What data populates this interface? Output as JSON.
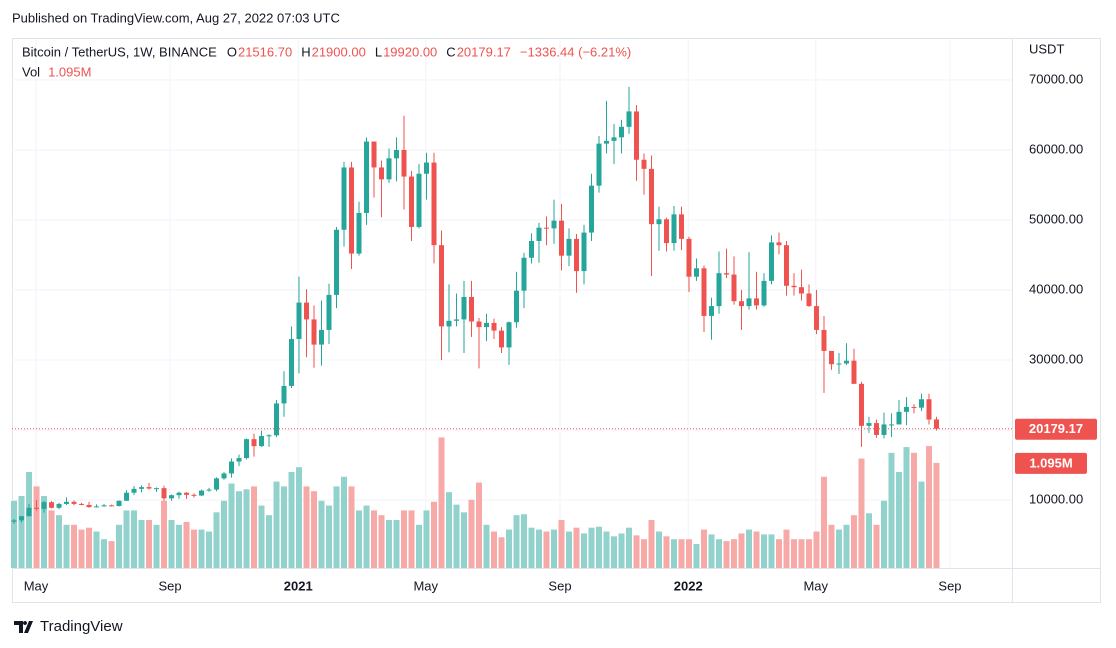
{
  "header": "Published on TradingView.com, Aug 27, 2022 07:03 UTC",
  "footer": "TradingView",
  "chart_data": {
    "type": "candlestick",
    "title": "Bitcoin / TetherUS, 1W, BINANCE",
    "legend": [
      {
        "key": "O",
        "value": "21516.70"
      },
      {
        "key": "H",
        "value": "21900.00"
      },
      {
        "key": "L",
        "value": "19920.00"
      },
      {
        "key": "C",
        "value": "20179.17"
      }
    ],
    "change": "−1336.44 (−6.21%)",
    "volume_title": "Vol",
    "volume_label": "1.095M",
    "price_label": "20179.17",
    "price_line": 20179.17,
    "y_unit": "USDT",
    "up_color": "#26a69a",
    "down_color": "#ef5350",
    "volume_up_color": "#92d2cc",
    "volume_down_color": "#f7a9a7",
    "grid": true,
    "ylim": [
      300,
      75700
    ],
    "yticks": [
      {
        "value": 10000,
        "label": "10000.00"
      },
      {
        "value": 20000,
        "label": "20000.00"
      },
      {
        "value": 30000,
        "label": "30000.00"
      },
      {
        "value": 40000,
        "label": "40000.00"
      },
      {
        "value": 50000,
        "label": "50000.00"
      },
      {
        "value": 60000,
        "label": "60000.00"
      },
      {
        "value": 70000,
        "label": "70000.00"
      }
    ],
    "xlim": [
      -0.27,
      133.07
    ],
    "xticks": [
      {
        "value": 2.93,
        "label": "May"
      },
      {
        "value": 20.8,
        "label": "Sep"
      },
      {
        "value": 37.9,
        "label": "2021"
      },
      {
        "value": 54.9,
        "label": "May"
      },
      {
        "value": 72.8,
        "label": "Sep"
      },
      {
        "value": 89.9,
        "label": "2022"
      },
      {
        "value": 106.9,
        "label": "May"
      },
      {
        "value": 124.8,
        "label": "Sep"
      }
    ],
    "volume_lim": [
      0,
      5.5
    ],
    "ohlc": [
      [
        6900,
        7300,
        6600,
        7100
      ],
      [
        7100,
        7750,
        6800,
        7700
      ],
      [
        7700,
        9450,
        7650,
        8900
      ],
      [
        8900,
        10000,
        8500,
        8750
      ],
      [
        8750,
        9900,
        8200,
        9700
      ],
      [
        9700,
        9850,
        8800,
        8900
      ],
      [
        8900,
        9600,
        8700,
        9450
      ],
      [
        9450,
        10400,
        9300,
        9750
      ],
      [
        9750,
        9950,
        9250,
        9450
      ],
      [
        9450,
        9600,
        9250,
        9300
      ],
      [
        9300,
        9750,
        8900,
        9000
      ],
      [
        9000,
        9400,
        8950,
        9100
      ],
      [
        9100,
        9450,
        9050,
        9250
      ],
      [
        9250,
        9350,
        9100,
        9150
      ],
      [
        9150,
        9950,
        9100,
        9900
      ],
      [
        9900,
        11400,
        9900,
        11050
      ],
      [
        11050,
        12000,
        10700,
        11600
      ],
      [
        11600,
        12100,
        11100,
        11850
      ],
      [
        11850,
        12450,
        11500,
        11650
      ],
      [
        11650,
        11800,
        11150,
        11700
      ],
      [
        11700,
        12050,
        9900,
        10250
      ],
      [
        10250,
        10800,
        9900,
        10700
      ],
      [
        10700,
        11200,
        10200,
        11050
      ],
      [
        11050,
        11150,
        10150,
        10750
      ],
      [
        10750,
        10950,
        10350,
        10650
      ],
      [
        10650,
        11500,
        10550,
        11350
      ],
      [
        11350,
        11750,
        11200,
        11500
      ],
      [
        11500,
        13250,
        11250,
        13100
      ],
      [
        13100,
        14000,
        12900,
        13800
      ],
      [
        13800,
        15950,
        13200,
        15500
      ],
      [
        15500,
        16500,
        14850,
        16000
      ],
      [
        16000,
        18800,
        15800,
        18700
      ],
      [
        18700,
        19500,
        16200,
        17700
      ],
      [
        17700,
        19900,
        17600,
        19150
      ],
      [
        19150,
        19400,
        17600,
        19250
      ],
      [
        19250,
        24300,
        19000,
        23800
      ],
      [
        23800,
        28400,
        21900,
        26300
      ],
      [
        26300,
        34800,
        26000,
        33000
      ],
      [
        33000,
        41900,
        28100,
        38200
      ],
      [
        38200,
        40100,
        30400,
        35800
      ],
      [
        35800,
        37800,
        28900,
        32200
      ],
      [
        32200,
        38500,
        29200,
        34300
      ],
      [
        34300,
        40900,
        32300,
        39300
      ],
      [
        39300,
        49000,
        37400,
        48600
      ],
      [
        48600,
        58300,
        46200,
        57500
      ],
      [
        57500,
        58300,
        43000,
        45200
      ],
      [
        45200,
        52600,
        44900,
        51000
      ],
      [
        51000,
        61800,
        49300,
        61200
      ],
      [
        61200,
        61200,
        53200,
        57500
      ],
      [
        57500,
        58500,
        50400,
        55800
      ],
      [
        55800,
        60200,
        55300,
        58800
      ],
      [
        58800,
        61800,
        55500,
        60000
      ],
      [
        60000,
        64900,
        51500,
        56200
      ],
      [
        56200,
        57000,
        47000,
        49000
      ],
      [
        49000,
        58000,
        48800,
        56600
      ],
      [
        56600,
        59600,
        52900,
        58200
      ],
      [
        58200,
        59600,
        43800,
        46400
      ],
      [
        46400,
        48500,
        30000,
        34800
      ],
      [
        34800,
        40800,
        31100,
        35600
      ],
      [
        35600,
        39500,
        34800,
        35800
      ],
      [
        35800,
        41300,
        31000,
        39000
      ],
      [
        39000,
        41300,
        33300,
        35500
      ],
      [
        35500,
        36000,
        28800,
        34700
      ],
      [
        34700,
        36600,
        32700,
        35300
      ],
      [
        35300,
        35900,
        33000,
        34200
      ],
      [
        34200,
        34700,
        31000,
        31800
      ],
      [
        31800,
        35500,
        29300,
        35400
      ],
      [
        35400,
        42600,
        34600,
        39900
      ],
      [
        39900,
        45300,
        37400,
        44600
      ],
      [
        44600,
        48100,
        43800,
        47000
      ],
      [
        47000,
        49600,
        43900,
        48900
      ],
      [
        48900,
        50500,
        46400,
        48800
      ],
      [
        48800,
        52900,
        46600,
        49900
      ],
      [
        49900,
        52300,
        42800,
        44900
      ],
      [
        44900,
        48800,
        43400,
        47300
      ],
      [
        47300,
        48000,
        39600,
        42700
      ],
      [
        42700,
        49300,
        40800,
        48200
      ],
      [
        48200,
        56600,
        47000,
        54900
      ],
      [
        54900,
        62000,
        53900,
        60900
      ],
      [
        60900,
        67000,
        59500,
        61300
      ],
      [
        61300,
        63700,
        58000,
        61800
      ],
      [
        61800,
        64300,
        59500,
        63300
      ],
      [
        63300,
        69000,
        62300,
        65500
      ],
      [
        65500,
        66400,
        55600,
        58600
      ],
      [
        58600,
        59500,
        53600,
        57300
      ],
      [
        57300,
        59200,
        42000,
        49400
      ],
      [
        49400,
        51900,
        45600,
        50100
      ],
      [
        50100,
        50300,
        45500,
        46700
      ],
      [
        46700,
        52000,
        45600,
        50800
      ],
      [
        50800,
        51900,
        45700,
        47300
      ],
      [
        47300,
        47600,
        39700,
        41900
      ],
      [
        41900,
        44500,
        41300,
        43100
      ],
      [
        43100,
        43500,
        34000,
        36300
      ],
      [
        36300,
        38900,
        32900,
        37700
      ],
      [
        37700,
        45500,
        36600,
        42400
      ],
      [
        42400,
        45900,
        41700,
        42200
      ],
      [
        42200,
        44800,
        37900,
        38400
      ],
      [
        38400,
        40000,
        34300,
        37700
      ],
      [
        37700,
        45400,
        37200,
        38800
      ],
      [
        38800,
        42600,
        37200,
        37800
      ],
      [
        37800,
        42400,
        37600,
        41300
      ],
      [
        41300,
        47800,
        40800,
        46800
      ],
      [
        46800,
        48200,
        45100,
        46400
      ],
      [
        46400,
        47000,
        39200,
        40600
      ],
      [
        40600,
        42400,
        39200,
        40400
      ],
      [
        40400,
        42900,
        38500,
        39500
      ],
      [
        39500,
        40800,
        37600,
        37700
      ],
      [
        37700,
        40000,
        33700,
        34300
      ],
      [
        34300,
        36300,
        25300,
        31300
      ],
      [
        31300,
        31300,
        28600,
        29400
      ],
      [
        29400,
        31000,
        28000,
        29500
      ],
      [
        29500,
        32400,
        29300,
        29900
      ],
      [
        29900,
        31600,
        26600,
        26600
      ],
      [
        26600,
        26900,
        17600,
        20600
      ],
      [
        20600,
        21900,
        19600,
        21000
      ],
      [
        21000,
        21500,
        18900,
        19300
      ],
      [
        19300,
        22500,
        18800,
        20800
      ],
      [
        20800,
        22400,
        19000,
        20800
      ],
      [
        20800,
        24300,
        20800,
        22600
      ],
      [
        22600,
        24700,
        20700,
        23300
      ],
      [
        23300,
        23700,
        22400,
        23200
      ],
      [
        23200,
        25200,
        22700,
        24400
      ],
      [
        24400,
        25200,
        20800,
        21500
      ],
      [
        21516.7,
        21900,
        19920,
        20179.17
      ]
    ],
    "volume": [
      0.7,
      0.75,
      1.0,
      0.85,
      0.75,
      0.6,
      0.55,
      0.45,
      0.45,
      0.4,
      0.42,
      0.38,
      0.3,
      0.28,
      0.45,
      0.6,
      0.6,
      0.5,
      0.5,
      0.45,
      0.7,
      0.5,
      0.45,
      0.48,
      0.4,
      0.4,
      0.38,
      0.58,
      0.7,
      0.88,
      0.8,
      0.82,
      0.85,
      0.65,
      0.55,
      0.9,
      0.85,
      1.0,
      1.05,
      0.85,
      0.8,
      0.7,
      0.65,
      0.85,
      0.95,
      0.85,
      0.6,
      0.65,
      0.6,
      0.55,
      0.5,
      0.5,
      0.6,
      0.6,
      0.45,
      0.6,
      0.69,
      1.36,
      0.79,
      0.66,
      0.58,
      0.71,
      0.89,
      0.45,
      0.38,
      0.32,
      0.4,
      0.55,
      0.56,
      0.42,
      0.4,
      0.38,
      0.4,
      0.5,
      0.38,
      0.42,
      0.36,
      0.42,
      0.43,
      0.38,
      0.33,
      0.36,
      0.42,
      0.34,
      0.3,
      0.5,
      0.38,
      0.33,
      0.3,
      0.3,
      0.3,
      0.25,
      0.4,
      0.35,
      0.3,
      0.28,
      0.3,
      0.36,
      0.4,
      0.38,
      0.35,
      0.35,
      0.3,
      0.4,
      0.3,
      0.3,
      0.3,
      0.38,
      0.95,
      0.45,
      0.4,
      0.45,
      0.55,
      1.14,
      0.57,
      0.45,
      0.7,
      1.2,
      1.0,
      1.26,
      1.2,
      0.9,
      1.27,
      1.095
    ]
  }
}
